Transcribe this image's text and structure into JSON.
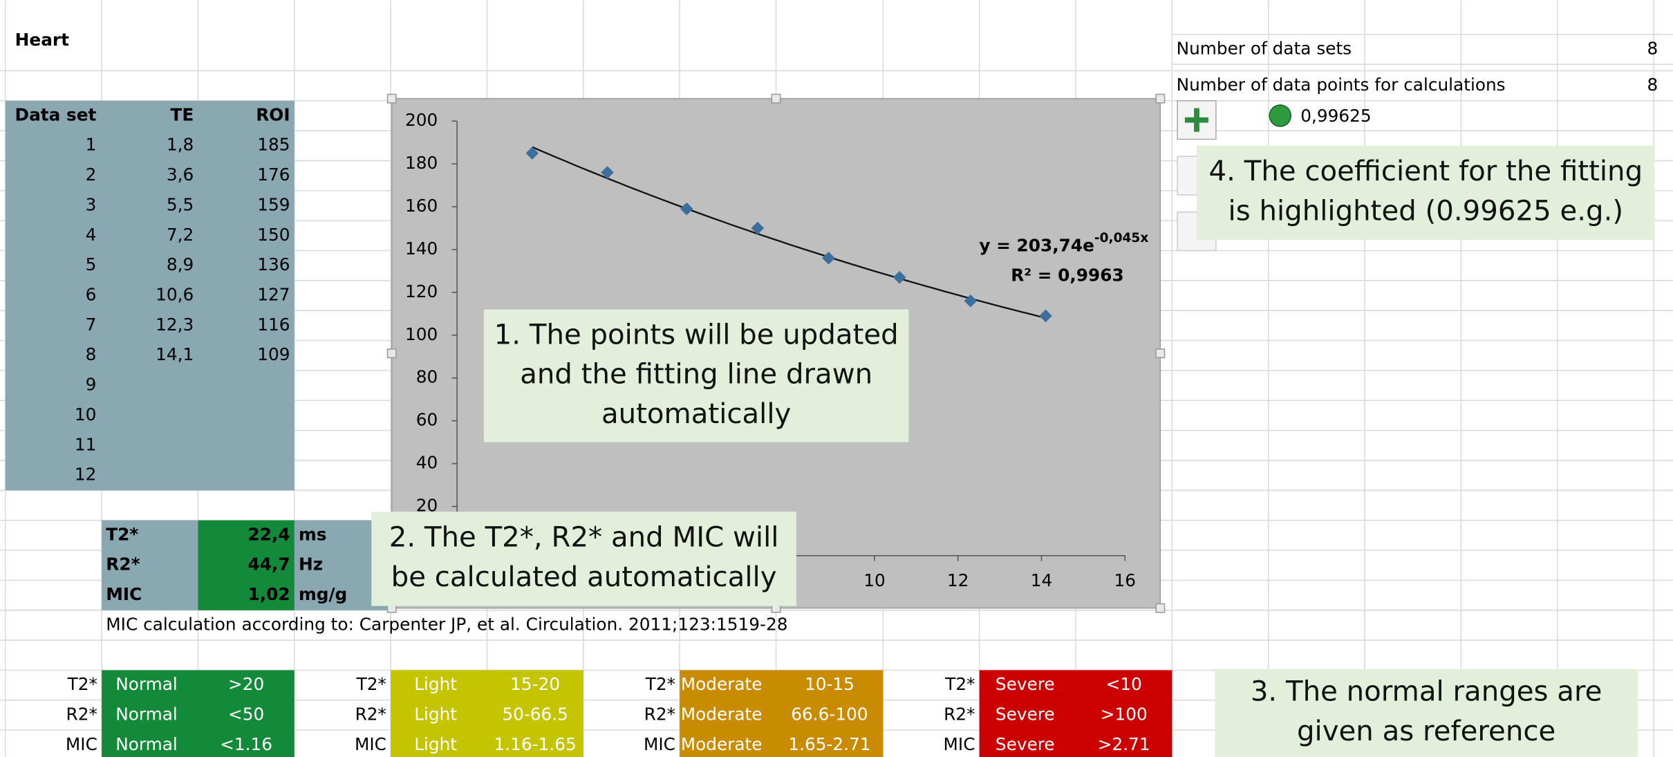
{
  "sheet_title": "Heart",
  "table": {
    "headers": [
      "Data set",
      "TE",
      "ROI"
    ],
    "rows": [
      [
        "1",
        "1,8",
        "185"
      ],
      [
        "2",
        "3,6",
        "176"
      ],
      [
        "3",
        "5,5",
        "159"
      ],
      [
        "4",
        "7,2",
        "150"
      ],
      [
        "5",
        "8,9",
        "136"
      ],
      [
        "6",
        "10,6",
        "127"
      ],
      [
        "7",
        "12,3",
        "116"
      ],
      [
        "8",
        "14,1",
        "109"
      ],
      [
        "9"
      ],
      [
        "10"
      ],
      [
        "11"
      ],
      [
        "12"
      ]
    ]
  },
  "results": [
    {
      "label": "T2*",
      "value": "22,4",
      "unit": "ms"
    },
    {
      "label": "R2*",
      "value": "44,7",
      "unit": "Hz"
    },
    {
      "label": "MIC",
      "value": "1,02",
      "unit": "mg/g"
    }
  ],
  "citation": "MIC calculation according to: Carpenter JP, et al. Circulation. 2011;123:1519-28",
  "ranges": [
    {
      "level": "Normal",
      "color": "#138a3a",
      "rows": [
        [
          "T2*",
          ">20"
        ],
        [
          "R2*",
          "<50"
        ],
        [
          "MIC",
          "<1.16"
        ]
      ]
    },
    {
      "level": "Light",
      "color": "#c5c400",
      "rows": [
        [
          "T2*",
          "15-20"
        ],
        [
          "R2*",
          "50-66.5"
        ],
        [
          "MIC",
          "1.16-1.65"
        ]
      ]
    },
    {
      "level": "Moderate",
      "color": "#c98b00",
      "rows": [
        [
          "T2*",
          "10-15"
        ],
        [
          "R2*",
          "66.6-100"
        ],
        [
          "MIC",
          "1.65-2.71"
        ]
      ]
    },
    {
      "level": "Severe",
      "color": "#cc0000",
      "rows": [
        [
          "T2*",
          "<10"
        ],
        [
          "R2*",
          ">100"
        ],
        [
          "MIC",
          ">2.71"
        ]
      ]
    }
  ],
  "summary": [
    {
      "label": "Number of data sets",
      "value": "8"
    },
    {
      "label": "Number of data points for calculations",
      "value": "8"
    }
  ],
  "r_squared_cell": "0,99625",
  "chart": {
    "type": "scatter",
    "x": [
      1.8,
      3.6,
      5.5,
      7.2,
      8.9,
      10.6,
      12.3,
      14.1
    ],
    "y": [
      185,
      176,
      159,
      150,
      136,
      127,
      116,
      109
    ],
    "color": "#3c6e9e",
    "xlim": [
      0,
      16
    ],
    "ylim": [
      0,
      200
    ],
    "xticks": [
      0,
      2,
      4,
      6,
      8,
      10,
      12,
      14,
      16
    ],
    "yticks": [
      0,
      20,
      40,
      60,
      80,
      100,
      120,
      140,
      160,
      180,
      200
    ],
    "trendline": {
      "a": 203.74,
      "b": -0.045
    },
    "equation": "y = 203,74e",
    "equation_exponent": "-0,045x",
    "r_squared": "R² = 0,9963"
  },
  "callouts": [
    {
      "lines": [
        "1. The points will be updated",
        "and the fitting line drawn",
        "automatically"
      ]
    },
    {
      "lines": [
        "2. The T2*, R2* and MIC will",
        "be calculated automatically"
      ]
    },
    {
      "lines": [
        "3. The normal ranges are",
        "given as reference"
      ]
    },
    {
      "lines": [
        "4. The coefficient for the fitting",
        "is highlighted (0.99625 e.g.)"
      ]
    }
  ]
}
